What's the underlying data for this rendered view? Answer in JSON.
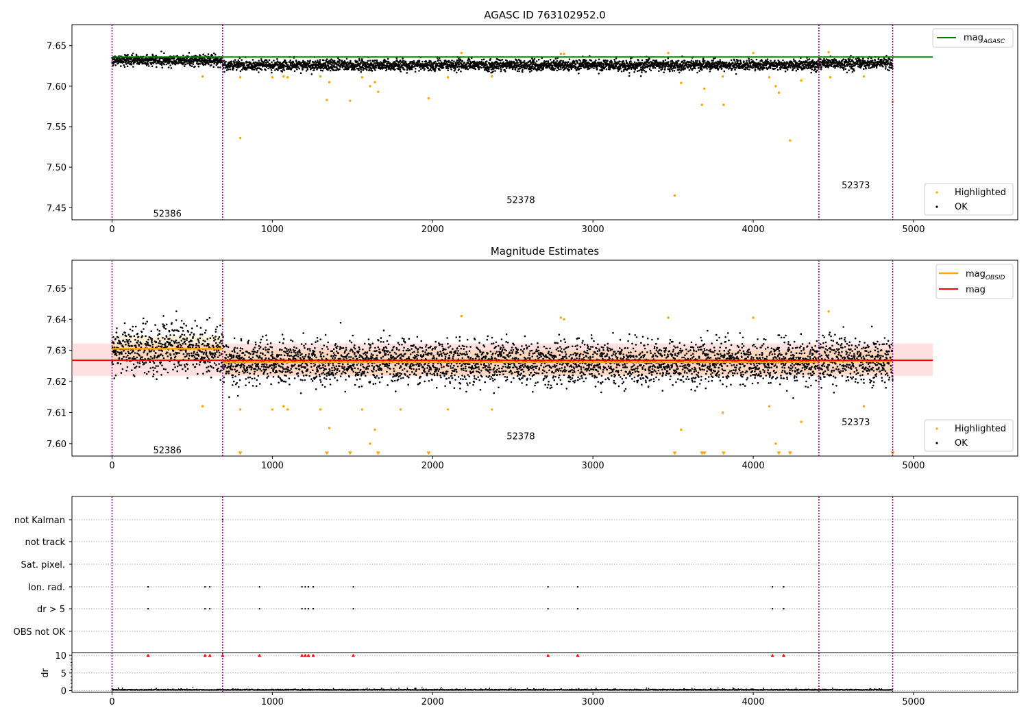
{
  "chart_data": [
    {
      "type": "scatter",
      "title": "AGASC ID 763102952.0",
      "xlim": [
        -250,
        5650
      ],
      "ylim": [
        7.435,
        7.676
      ],
      "xticks": [
        0,
        1000,
        2000,
        3000,
        4000,
        5000
      ],
      "yticks": [
        7.45,
        7.5,
        7.55,
        7.6,
        7.65
      ],
      "ytick_labels": [
        "7.45",
        "7.50",
        "7.55",
        "7.60",
        "7.65"
      ],
      "xtick_labels": [
        "0",
        "1000",
        "2000",
        "3000",
        "4000",
        "5000"
      ],
      "obs_boundaries": [
        0,
        690,
        4410,
        4870
      ],
      "obs_labels": [
        {
          "text": "52386",
          "x": 345,
          "y": 7.443
        },
        {
          "text": "52378",
          "x": 2550,
          "y": 7.46
        },
        {
          "text": "52373",
          "x": 4640,
          "y": 7.478
        }
      ],
      "mag_agasc": 7.636,
      "line_end": 5120,
      "series": [
        {
          "name": "OK",
          "color": "#000000",
          "segments": [
            {
              "x0": 0,
              "x1": 690,
              "mean": 7.632,
              "spread": 0.004
            },
            {
              "x0": 690,
              "x1": 4410,
              "mean": 7.626,
              "spread": 0.004
            },
            {
              "x0": 4410,
              "x1": 4870,
              "mean": 7.628,
              "spread": 0.004
            }
          ]
        },
        {
          "name": "Highlighted",
          "color": "#ffa500",
          "points": [
            [
              565,
              7.612
            ],
            [
              800,
              7.536
            ],
            [
              800,
              7.611
            ],
            [
              1000,
              7.611
            ],
            [
              1070,
              7.612
            ],
            [
              1095,
              7.611
            ],
            [
              1300,
              7.612
            ],
            [
              1340,
              7.583
            ],
            [
              1355,
              7.605
            ],
            [
              1485,
              7.582
            ],
            [
              1560,
              7.611
            ],
            [
              1610,
              7.6
            ],
            [
              1640,
              7.605
            ],
            [
              1660,
              7.593
            ],
            [
              1975,
              7.585
            ],
            [
              2095,
              7.611
            ],
            [
              2180,
              7.641
            ],
            [
              2370,
              7.612
            ],
            [
              2800,
              7.64
            ],
            [
              2820,
              7.64
            ],
            [
              3470,
              7.641
            ],
            [
              3510,
              7.465
            ],
            [
              3550,
              7.604
            ],
            [
              3680,
              7.577
            ],
            [
              3695,
              7.597
            ],
            [
              3810,
              7.612
            ],
            [
              3815,
              7.577
            ],
            [
              4000,
              7.641
            ],
            [
              4100,
              7.611
            ],
            [
              4140,
              7.6
            ],
            [
              4160,
              7.592
            ],
            [
              4230,
              7.533
            ],
            [
              4300,
              7.607
            ],
            [
              4470,
              7.642
            ],
            [
              4480,
              7.611
            ],
            [
              4690,
              7.612
            ],
            [
              4870,
              7.581
            ]
          ]
        }
      ],
      "legend_top": [
        "mag",
        "AGASC"
      ],
      "legend_bottom": [
        "Highlighted",
        "OK"
      ]
    },
    {
      "type": "scatter",
      "title": "Magnitude Estimates",
      "xlim": [
        -250,
        5650
      ],
      "ylim": [
        7.596,
        7.659
      ],
      "xticks": [
        0,
        1000,
        2000,
        3000,
        4000,
        5000
      ],
      "yticks": [
        7.6,
        7.61,
        7.62,
        7.63,
        7.64,
        7.65
      ],
      "ytick_labels": [
        "7.60",
        "7.61",
        "7.62",
        "7.63",
        "7.64",
        "7.65"
      ],
      "xtick_labels": [
        "0",
        "1000",
        "2000",
        "3000",
        "4000",
        "5000"
      ],
      "obs_boundaries": [
        0,
        690,
        4410,
        4870
      ],
      "obs_labels": [
        {
          "text": "52386",
          "x": 345,
          "y": 7.598
        },
        {
          "text": "52378",
          "x": 2550,
          "y": 7.6025
        },
        {
          "text": "52373",
          "x": 4640,
          "y": 7.607
        }
      ],
      "mag": 7.6268,
      "mag_band": [
        7.6218,
        7.6322
      ],
      "mag_obsid": [
        {
          "x0": 0,
          "x1": 690,
          "y": 7.6305
        },
        {
          "x0": 690,
          "x1": 4410,
          "y": 7.6262
        },
        {
          "x0": 4410,
          "x1": 4870,
          "y": 7.6265
        }
      ],
      "band_colors": [
        "#ffa500",
        "#ff9999"
      ],
      "series": [
        {
          "name": "OK",
          "color": "#000000",
          "segments": [
            {
              "x0": 0,
              "x1": 690,
              "mean": 7.6305,
              "spread": 0.0045
            },
            {
              "x0": 690,
              "x1": 4410,
              "mean": 7.6262,
              "spread": 0.004
            },
            {
              "x0": 4410,
              "x1": 4870,
              "mean": 7.6265,
              "spread": 0.0042
            }
          ]
        },
        {
          "name": "Highlighted",
          "color": "#ffa500",
          "points": [
            [
              565,
              7.612
            ],
            [
              800,
              7.611
            ],
            [
              1000,
              7.611
            ],
            [
              1070,
              7.612
            ],
            [
              1095,
              7.611
            ],
            [
              1300,
              7.611
            ],
            [
              1355,
              7.605
            ],
            [
              1560,
              7.611
            ],
            [
              1610,
              7.6
            ],
            [
              1640,
              7.6045
            ],
            [
              1800,
              7.611
            ],
            [
              2095,
              7.611
            ],
            [
              2180,
              7.641
            ],
            [
              2370,
              7.611
            ],
            [
              2800,
              7.6405
            ],
            [
              2820,
              7.64
            ],
            [
              3470,
              7.6405
            ],
            [
              3550,
              7.6045
            ],
            [
              3810,
              7.61
            ],
            [
              4000,
              7.6405
            ],
            [
              4100,
              7.612
            ],
            [
              4140,
              7.6
            ],
            [
              4300,
              7.607
            ],
            [
              4470,
              7.6425
            ],
            [
              4690,
              7.612
            ],
            [
              690,
              7.64
            ]
          ]
        },
        {
          "name": "below range",
          "color": "#ffa500",
          "marker": "triangle-down",
          "points": [
            [
              800,
              7.5968
            ],
            [
              1340,
              7.5968
            ],
            [
              1485,
              7.5968
            ],
            [
              1660,
              7.5968
            ],
            [
              1975,
              7.5968
            ],
            [
              3510,
              7.5968
            ],
            [
              3680,
              7.5968
            ],
            [
              3695,
              7.5968
            ],
            [
              3815,
              7.5968
            ],
            [
              4160,
              7.5968
            ],
            [
              4230,
              7.5968
            ],
            [
              4870,
              7.5968
            ]
          ]
        }
      ],
      "legend_top": [
        "mag",
        "OBSID",
        "mag"
      ],
      "legend_bottom": [
        "Highlighted",
        "OK"
      ]
    },
    {
      "type": "scatter",
      "xlim": [
        -250,
        5650
      ],
      "xticks": [
        0,
        1000,
        2000,
        3000,
        4000,
        5000
      ],
      "xtick_labels": [
        "0",
        "1000",
        "2000",
        "3000",
        "4000",
        "5000"
      ],
      "obs_boundaries": [
        0,
        690,
        4410,
        4870
      ],
      "flag_rows": [
        "not Kalman",
        "not track",
        "Sat. pixel.",
        "Ion. rad.",
        "dr > 5",
        "OBS not OK"
      ],
      "flag_points": {
        "not Kalman": [
          690
        ],
        "not track": [],
        "Sat. pixel.": [],
        "Ion. rad.": [
          225,
          580,
          610,
          920,
          1185,
          1205,
          1225,
          1255,
          1505,
          2720,
          2905,
          4120,
          4190
        ],
        "dr > 5": [
          225,
          580,
          610,
          920,
          1185,
          1205,
          1225,
          1255,
          1505,
          2720,
          2905,
          4120,
          4190
        ],
        "OBS not OK": []
      },
      "dr_ylabel": "dr",
      "dr_ylim": [
        -0.5,
        10.8
      ],
      "dr_yticks": [
        0,
        5,
        10
      ],
      "dr_ytick_labels": [
        "0",
        "5",
        "10"
      ],
      "dr_clipped": [
        225,
        580,
        610,
        690,
        920,
        1185,
        1205,
        1225,
        1255,
        1505,
        2720,
        2905,
        4120,
        4190
      ],
      "dr_range": [
        0,
        4870
      ]
    }
  ]
}
